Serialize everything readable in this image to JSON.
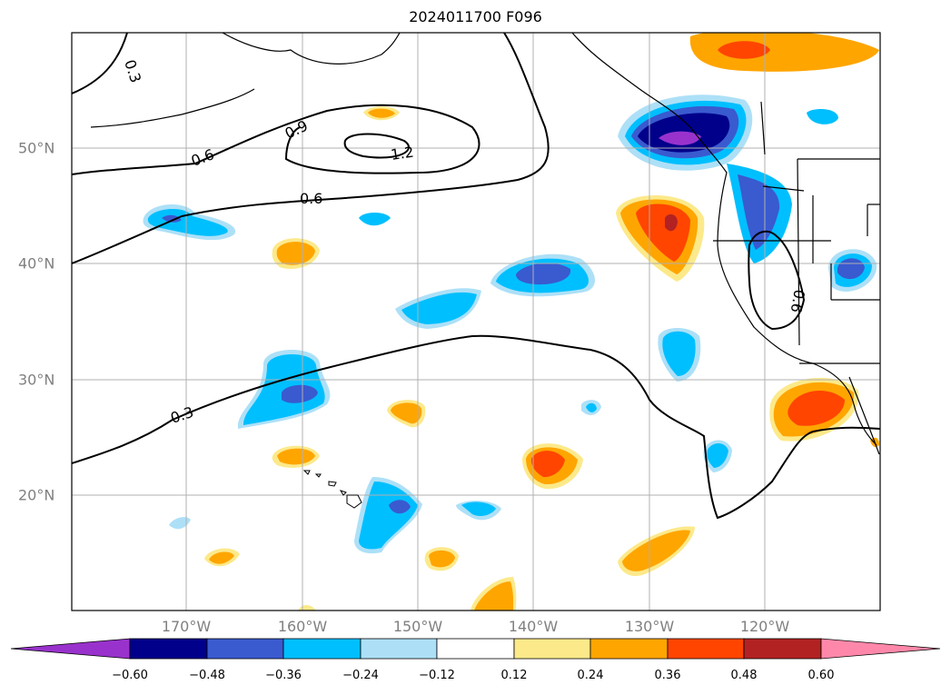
{
  "title": "2024011700 F096",
  "lat_labels": [
    "50°N",
    "40°N",
    "30°N",
    "20°N"
  ],
  "lon_labels": [
    "170°W",
    "160°W",
    "150°W",
    "140°W",
    "130°W",
    "120°W"
  ],
  "contour_labels": [
    "0.3",
    "0.6",
    "0.9",
    "1.2",
    "0.6",
    "0.3",
    "0.6"
  ],
  "colorbar": {
    "ticks": [
      "−0.60",
      "−0.48",
      "−0.36",
      "−0.24",
      "−0.12",
      "0.12",
      "0.24",
      "0.36",
      "0.48",
      "0.60"
    ],
    "colors": [
      "#9932CC",
      "#00008B",
      "#3A5ACF",
      "#00BFFF",
      "#ADE0F7",
      "#FFFFFF",
      "#FCE98A",
      "#FFA500",
      "#FF4500",
      "#B22222",
      "#FF88AA"
    ]
  }
}
